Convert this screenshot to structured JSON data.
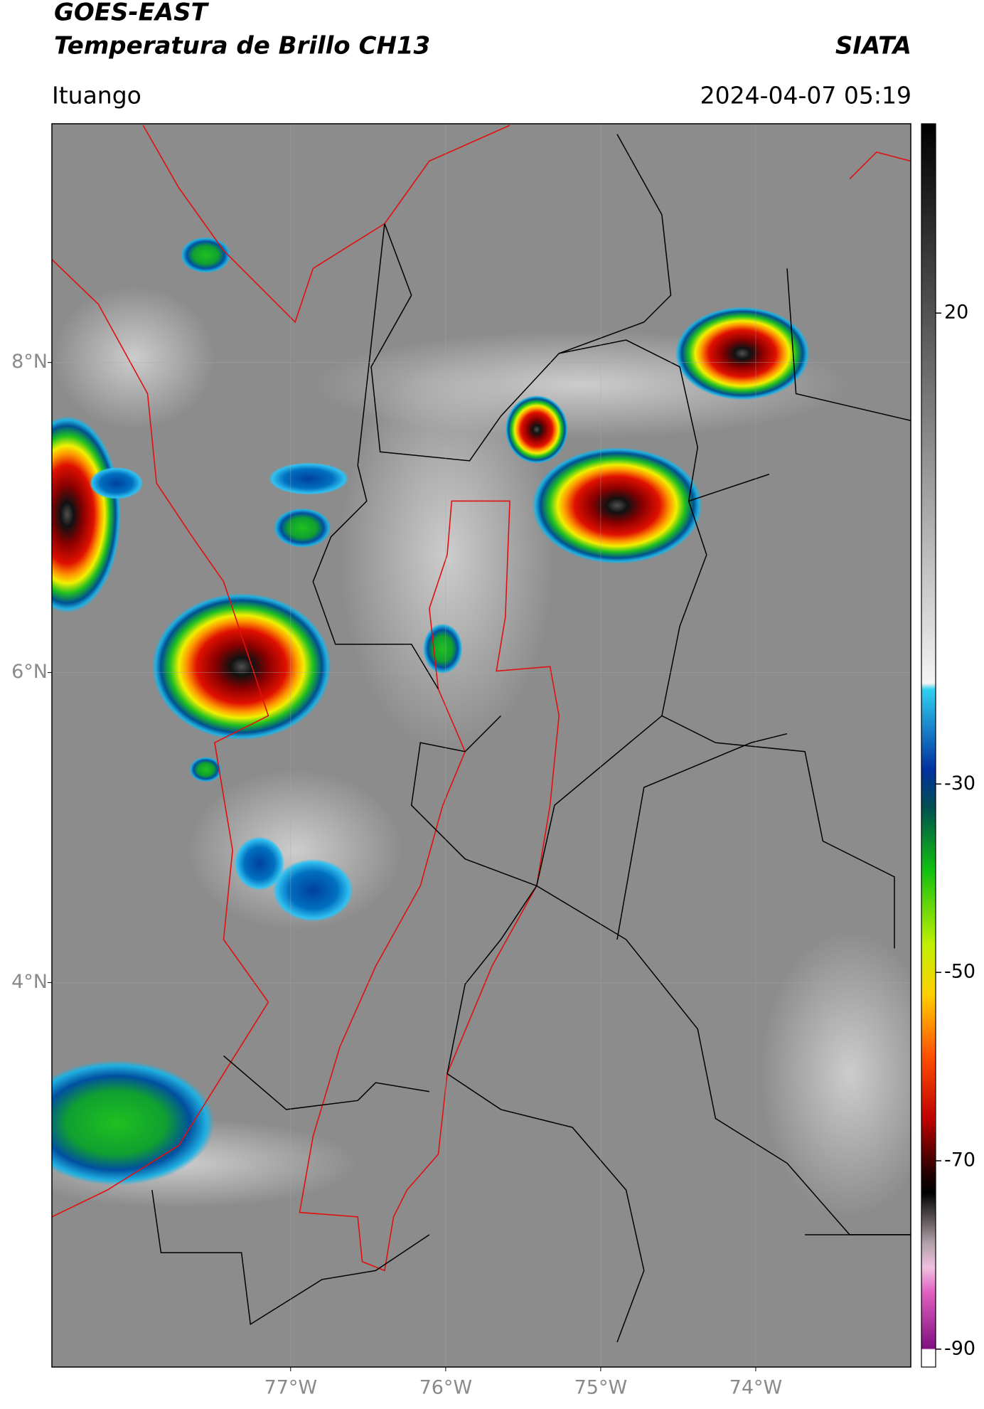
{
  "header": {
    "title": "GOES-EAST",
    "subtitle": "Temperatura de Brillo CH13",
    "brand": "SIATA",
    "region": "Ituango",
    "datetime": "2024-04-07 05:19"
  },
  "map": {
    "xlim": [
      -78.54,
      -73.0
    ],
    "ylim": [
      1.52,
      9.54
    ],
    "xticks": [
      {
        "value": -77,
        "label": "77°W"
      },
      {
        "value": -76,
        "label": "76°W"
      },
      {
        "value": -75,
        "label": "75°W"
      },
      {
        "value": -74,
        "label": "74°W"
      }
    ],
    "yticks": [
      {
        "value": 8,
        "label": "8°N"
      },
      {
        "value": 6,
        "label": "6°N"
      },
      {
        "value": 4,
        "label": "4°N"
      }
    ],
    "grid": true
  },
  "colorbar": {
    "lim": [
      -91.9,
      40.1
    ],
    "ticks": [
      20,
      -30,
      -50,
      -70,
      -90
    ]
  }
}
